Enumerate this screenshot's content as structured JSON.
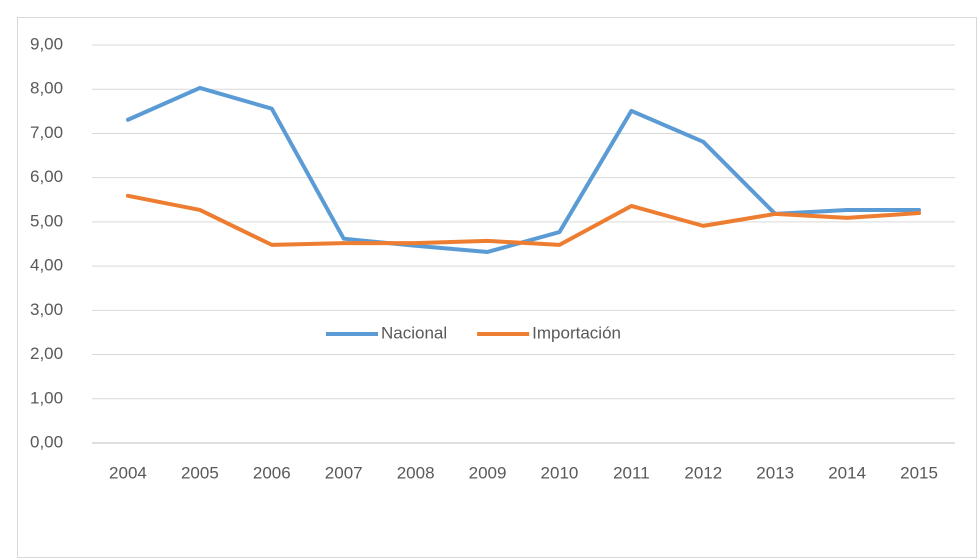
{
  "chart_data": {
    "type": "line",
    "categories": [
      "2004",
      "2005",
      "2006",
      "2007",
      "2008",
      "2009",
      "2010",
      "2011",
      "2012",
      "2013",
      "2014",
      "2015"
    ],
    "series": [
      {
        "name": "Nacional",
        "color": "#5b9bd5",
        "values": [
          7.31,
          8.03,
          7.56,
          4.62,
          4.46,
          4.32,
          4.77,
          7.51,
          6.81,
          5.18,
          5.27,
          5.27
        ]
      },
      {
        "name": "Importación",
        "color": "#ed7d31",
        "values": [
          5.59,
          5.27,
          4.48,
          4.52,
          4.52,
          4.57,
          4.48,
          5.36,
          4.91,
          5.18,
          5.09,
          5.2
        ]
      }
    ],
    "ylim": [
      0,
      9
    ],
    "yticks": [
      {
        "value": 0,
        "label": "0,00"
      },
      {
        "value": 1,
        "label": "1,00"
      },
      {
        "value": 2,
        "label": "2,00"
      },
      {
        "value": 3,
        "label": "3,00"
      },
      {
        "value": 4,
        "label": "4,00"
      },
      {
        "value": 5,
        "label": "5,00"
      },
      {
        "value": 6,
        "label": "6,00"
      },
      {
        "value": 7,
        "label": "7,00"
      },
      {
        "value": 8,
        "label": "8,00"
      },
      {
        "value": 9,
        "label": "9,00"
      }
    ],
    "grid": true,
    "legend": "center"
  }
}
